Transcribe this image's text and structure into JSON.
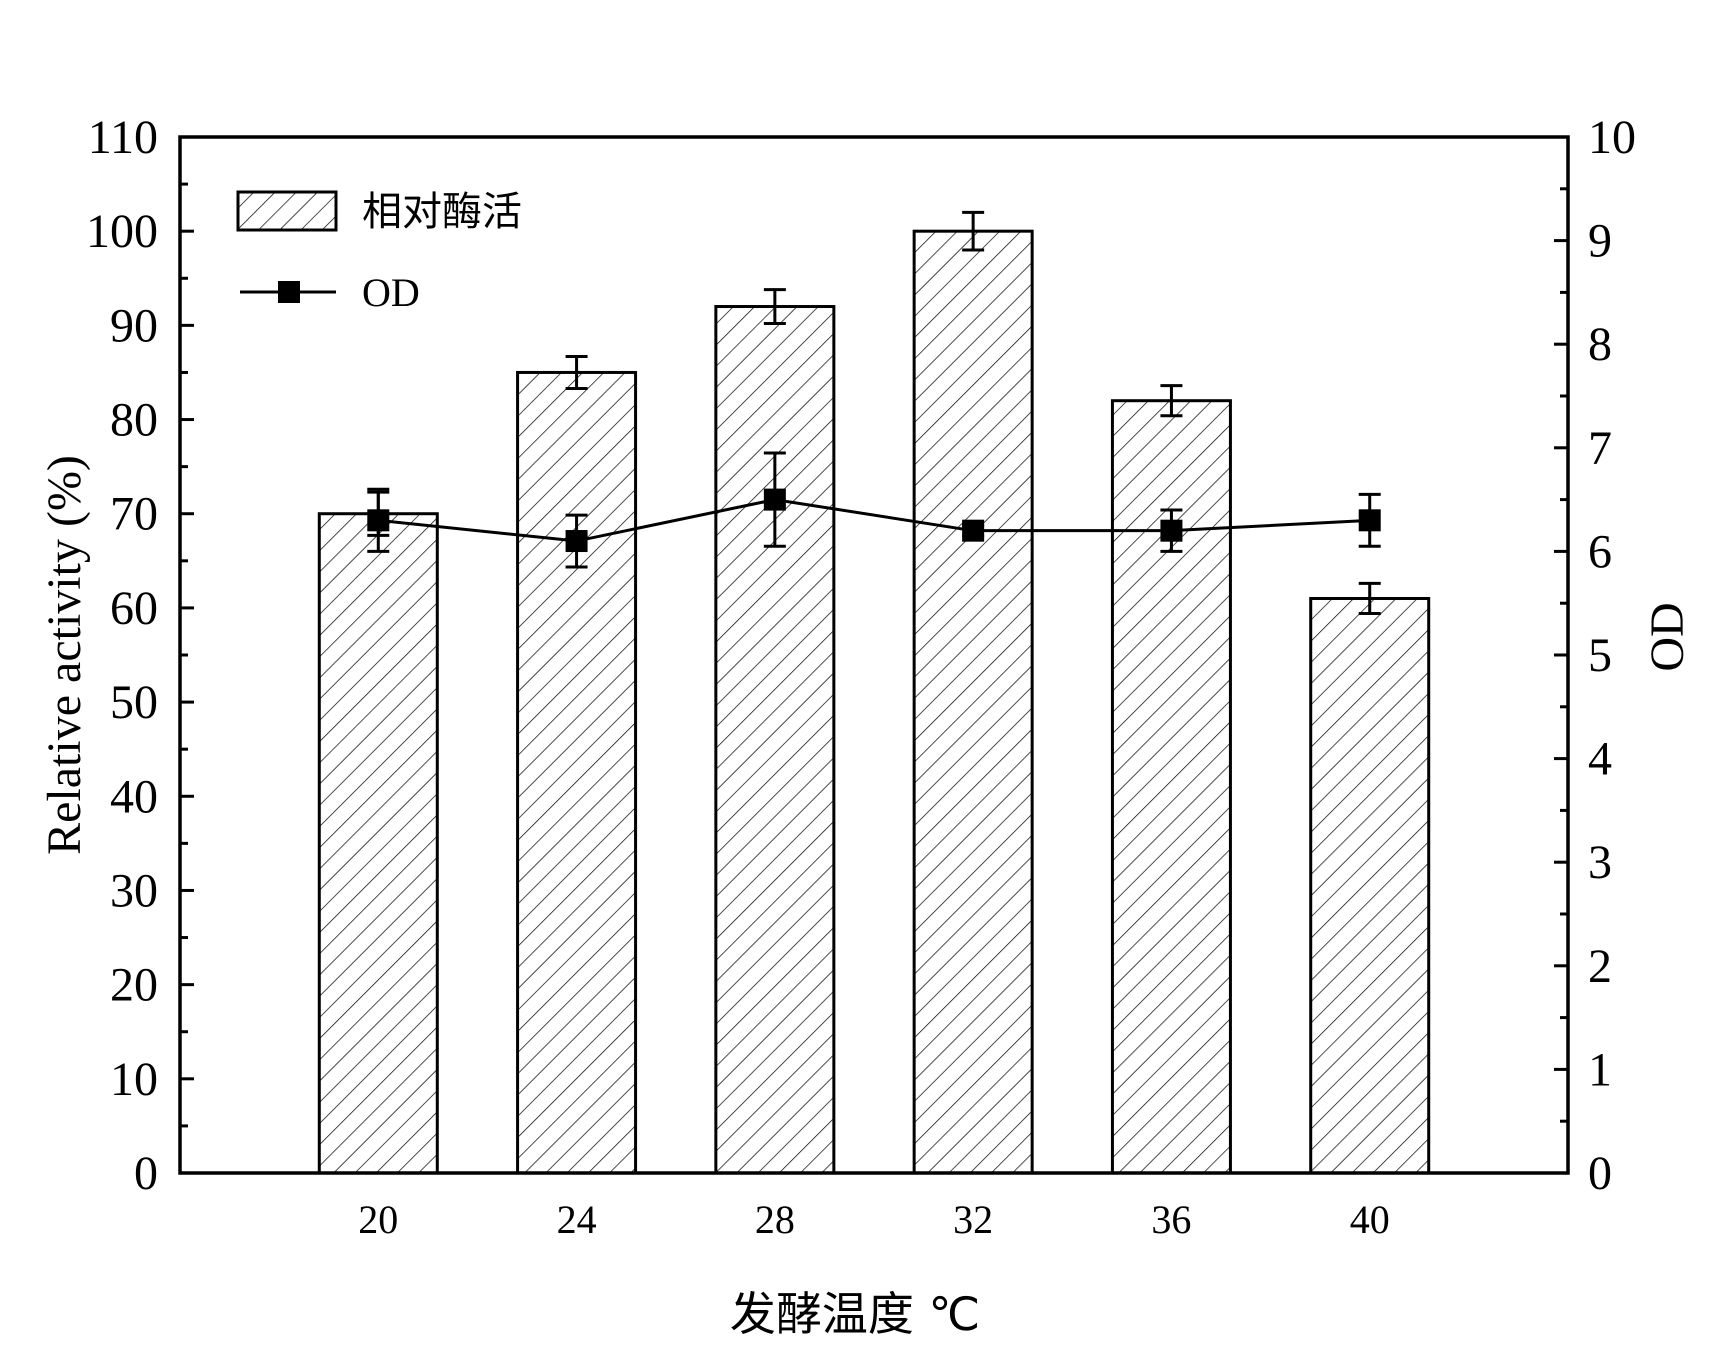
{
  "chart_data": {
    "type": "bar",
    "categories": [
      "20",
      "24",
      "28",
      "32",
      "36",
      "40"
    ],
    "series": [
      {
        "name": "相对酶活",
        "kind": "bar",
        "axis": "left",
        "values": [
          70,
          85,
          92,
          100,
          82,
          61
        ],
        "errors": [
          2.3,
          1.7,
          1.8,
          2.0,
          1.6,
          1.6
        ]
      },
      {
        "name": "OD",
        "kind": "line",
        "axis": "right",
        "values": [
          6.3,
          6.1,
          6.5,
          6.2,
          6.2,
          6.3
        ],
        "errors": [
          0.3,
          0.25,
          0.45,
          0.05,
          0.2,
          0.25
        ]
      }
    ],
    "xlabel": "发酵温度 ℃",
    "ylabel": "Relative activity (%)",
    "y2label": "OD",
    "ylim": [
      0,
      110
    ],
    "y2lim": [
      0,
      10
    ],
    "yticks": [
      "0",
      "10",
      "20",
      "30",
      "40",
      "50",
      "60",
      "70",
      "80",
      "90",
      "100",
      "110"
    ],
    "y2ticks": [
      "0",
      "1",
      "2",
      "3",
      "4",
      "5",
      "6",
      "7",
      "8",
      "9",
      "10"
    ],
    "legend_position": "top-left",
    "grid": false,
    "bar_fill": "diagonal-hatch",
    "colors": {
      "line": "#000000",
      "bar_edge": "#000000",
      "hatch": "#000000"
    }
  }
}
